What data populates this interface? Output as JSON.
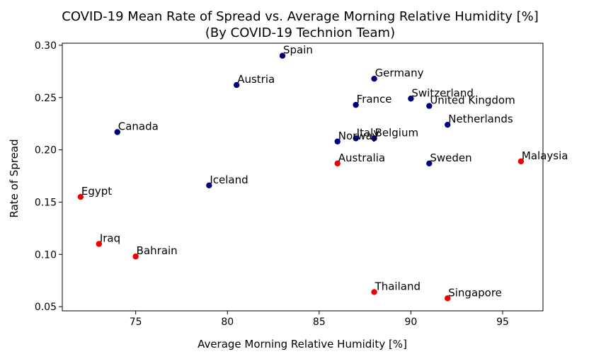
{
  "chart_data": {
    "type": "scatter",
    "title": "COVID-19 Mean Rate of Spread vs. Average Morning Relative Humidity [%]",
    "subtitle": "(By COVID-19 Technion Team)",
    "xlabel": "Average Morning Relative Humidity [%]",
    "ylabel": "Rate of Spread",
    "xlim": [
      71.0,
      97.2
    ],
    "ylim": [
      0.046,
      0.302
    ],
    "xticks": [
      75,
      80,
      85,
      90,
      95
    ],
    "yticks": [
      0.05,
      0.1,
      0.15,
      0.2,
      0.25,
      0.3
    ],
    "ytick_labels": [
      "0.05",
      "0.10",
      "0.15",
      "0.20",
      "0.25",
      "0.30"
    ],
    "grid": false,
    "colors": {
      "navy": "#00007f",
      "red": "#ee0000"
    },
    "points": [
      {
        "label": "Spain",
        "x": 83.0,
        "y": 0.29,
        "color": "navy"
      },
      {
        "label": "Germany",
        "x": 88.0,
        "y": 0.268,
        "color": "navy"
      },
      {
        "label": "Austria",
        "x": 80.5,
        "y": 0.262,
        "color": "navy"
      },
      {
        "label": "Switzerland",
        "x": 90.0,
        "y": 0.249,
        "color": "navy"
      },
      {
        "label": "France",
        "x": 87.0,
        "y": 0.243,
        "color": "navy"
      },
      {
        "label": "United Kingdom",
        "x": 91.0,
        "y": 0.242,
        "color": "navy"
      },
      {
        "label": "Netherlands",
        "x": 92.0,
        "y": 0.224,
        "color": "navy"
      },
      {
        "label": "Canada",
        "x": 74.0,
        "y": 0.217,
        "color": "navy"
      },
      {
        "label": "Italy",
        "x": 87.0,
        "y": 0.211,
        "color": "navy"
      },
      {
        "label": "Belgium",
        "x": 88.0,
        "y": 0.211,
        "color": "navy"
      },
      {
        "label": "Norway",
        "x": 86.0,
        "y": 0.208,
        "color": "navy"
      },
      {
        "label": "Sweden",
        "x": 91.0,
        "y": 0.187,
        "color": "navy"
      },
      {
        "label": "Iceland",
        "x": 79.0,
        "y": 0.166,
        "color": "navy"
      },
      {
        "label": "Malaysia",
        "x": 96.0,
        "y": 0.189,
        "color": "red"
      },
      {
        "label": "Australia",
        "x": 86.0,
        "y": 0.187,
        "color": "red"
      },
      {
        "label": "Egypt",
        "x": 72.0,
        "y": 0.155,
        "color": "red"
      },
      {
        "label": "Iraq",
        "x": 73.0,
        "y": 0.11,
        "color": "red"
      },
      {
        "label": "Bahrain",
        "x": 75.0,
        "y": 0.098,
        "color": "red"
      },
      {
        "label": "Thailand",
        "x": 88.0,
        "y": 0.064,
        "color": "red"
      },
      {
        "label": "Singapore",
        "x": 92.0,
        "y": 0.058,
        "color": "red"
      }
    ]
  }
}
